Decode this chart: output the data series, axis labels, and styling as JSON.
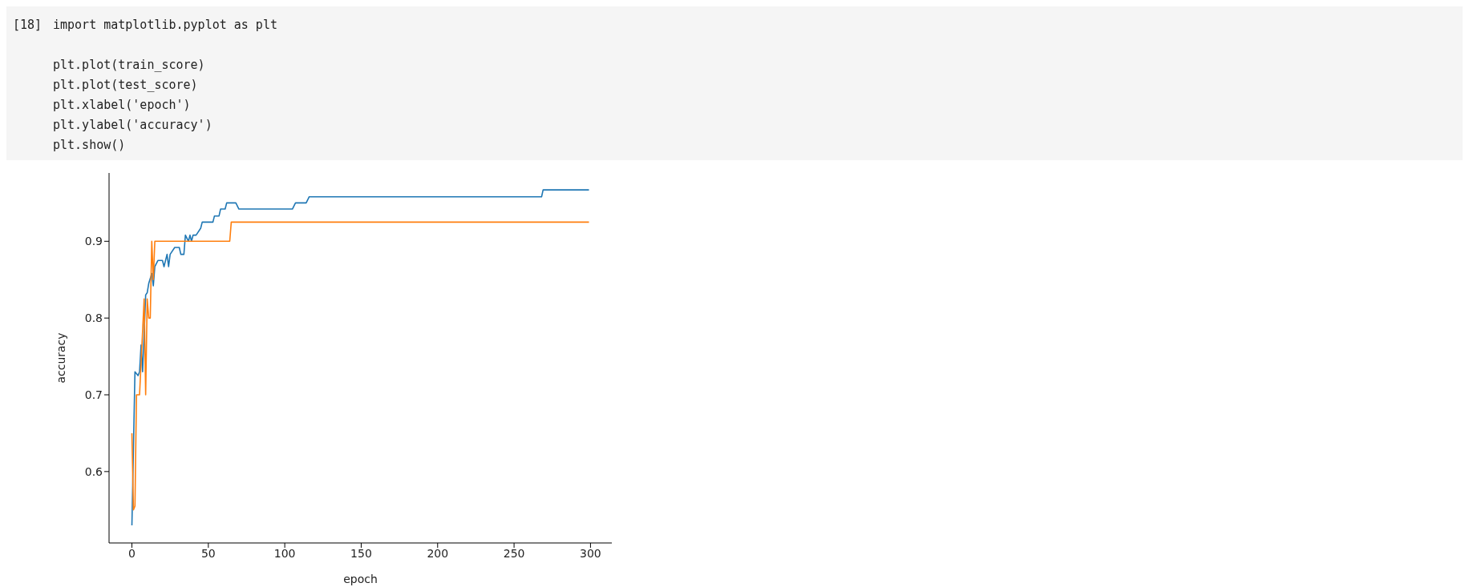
{
  "chart_data": {
    "type": "line",
    "xlabel": "epoch",
    "ylabel": "accuracy",
    "annotations": [
      "[18]",
      "import matplotlib.pyplot as plt",
      "plt.plot(train_score)",
      "plt.plot(test_score)",
      "plt.xlabel('epoch')",
      "plt.ylabel('accuracy')",
      "plt.show()"
    ],
    "xlim": [
      -14.95,
      313.95
    ],
    "xticks": [
      0,
      50,
      100,
      150,
      200,
      250,
      300
    ],
    "ylim": [
      0.507,
      0.989
    ],
    "yticks": [
      0.6,
      0.7,
      0.8,
      0.9
    ],
    "grid": false,
    "legend": false,
    "marker": "none",
    "line_style": "solid",
    "series": [
      {
        "color": "#1f77b4",
        "x": [
          0,
          1,
          2,
          4,
          5,
          6,
          7,
          8,
          9,
          10,
          11,
          13,
          14,
          15,
          17,
          20,
          21,
          23,
          24,
          25,
          28,
          31,
          32,
          34,
          35,
          37,
          38,
          39,
          40,
          42,
          45,
          46,
          53,
          54,
          57,
          58,
          61,
          62,
          68,
          70,
          105,
          107,
          114,
          116,
          268,
          269,
          299
        ],
        "values": [
          0.53,
          0.63,
          0.73,
          0.725,
          0.73,
          0.765,
          0.73,
          0.78,
          0.83,
          0.833,
          0.845,
          0.858,
          0.842,
          0.867,
          0.875,
          0.875,
          0.867,
          0.883,
          0.867,
          0.883,
          0.892,
          0.892,
          0.883,
          0.883,
          0.908,
          0.9,
          0.908,
          0.9,
          0.908,
          0.908,
          0.917,
          0.925,
          0.925,
          0.933,
          0.933,
          0.942,
          0.942,
          0.95,
          0.95,
          0.942,
          0.942,
          0.95,
          0.95,
          0.958,
          0.958,
          0.967,
          0.967
        ]
      },
      {
        "color": "#ff7f0e",
        "x": [
          0,
          1,
          2,
          3,
          5,
          8,
          9,
          10,
          11,
          12,
          13,
          14,
          15,
          64,
          65,
          299
        ],
        "values": [
          0.65,
          0.55,
          0.555,
          0.7,
          0.7,
          0.825,
          0.7,
          0.825,
          0.8,
          0.8,
          0.9,
          0.85,
          0.9,
          0.9,
          0.925,
          0.925
        ]
      }
    ]
  }
}
